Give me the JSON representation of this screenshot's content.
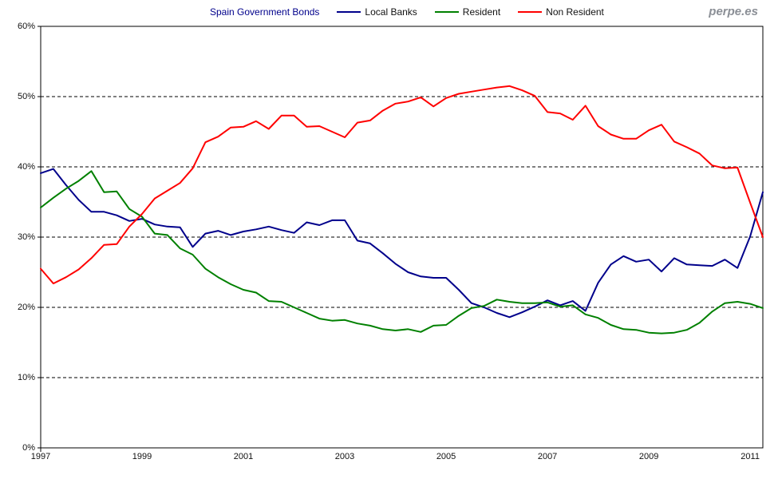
{
  "header": {
    "title": "Spain Government Bonds",
    "watermark": "perpe.es"
  },
  "legend": {
    "position": "top",
    "items": [
      {
        "label": "Local Banks",
        "color": "#00008B"
      },
      {
        "label": "Resident",
        "color": "#008000"
      },
      {
        "label": "Non Resident",
        "color": "#FF0000"
      }
    ]
  },
  "axes": {
    "y_ticks": [
      "60%",
      "50%",
      "40%",
      "30%",
      "20%",
      "10%",
      "0%"
    ],
    "x_ticks": [
      "1997",
      "1999",
      "2001",
      "2003",
      "2005",
      "2007",
      "2009",
      "2011"
    ]
  },
  "chart_data": {
    "type": "line",
    "title": "Spain Government Bonds",
    "x_unit": "year (quarterly samples)",
    "xlim": [
      1997,
      2011.25
    ],
    "ylim": [
      0,
      60
    ],
    "y_tick_step": 10,
    "y_tick_format": "percent",
    "grid": "horizontal-dashed",
    "legend_position": "top",
    "x": [
      1997,
      1997.25,
      1997.5,
      1997.75,
      1998,
      1998.25,
      1998.5,
      1998.75,
      1999,
      1999.25,
      1999.5,
      1999.75,
      2000,
      2000.25,
      2000.5,
      2000.75,
      2001,
      2001.25,
      2001.5,
      2001.75,
      2002,
      2002.25,
      2002.5,
      2002.75,
      2003,
      2003.25,
      2003.5,
      2003.75,
      2004,
      2004.25,
      2004.5,
      2004.75,
      2005,
      2005.25,
      2005.5,
      2005.75,
      2006,
      2006.25,
      2006.5,
      2006.75,
      2007,
      2007.25,
      2007.5,
      2007.75,
      2008,
      2008.25,
      2008.5,
      2008.75,
      2009,
      2009.25,
      2009.5,
      2009.75,
      2010,
      2010.25,
      2010.5,
      2010.75,
      2011,
      2011.25
    ],
    "series": [
      {
        "name": "Local Banks",
        "color": "#00008B",
        "values": [
          39.1,
          39.7,
          37.4,
          35.3,
          33.6,
          33.6,
          33.1,
          32.3,
          32.6,
          31.8,
          31.5,
          31.4,
          28.6,
          30.5,
          30.9,
          30.3,
          30.8,
          31.1,
          31.5,
          31.0,
          30.6,
          32.1,
          31.7,
          32.4,
          32.4,
          29.5,
          29.1,
          27.7,
          26.2,
          25.0,
          24.4,
          24.2,
          24.2,
          22.5,
          20.6,
          20.0,
          19.2,
          18.6,
          19.3,
          20.1,
          21.0,
          20.3,
          20.9,
          19.5,
          23.5,
          26.1,
          27.3,
          26.5,
          26.8,
          25.1,
          27.0,
          26.1,
          26.0,
          25.9,
          26.8,
          25.6,
          30.1,
          36.4
        ]
      },
      {
        "name": "Resident",
        "color": "#008000",
        "values": [
          34.2,
          35.6,
          36.9,
          38.0,
          39.4,
          36.4,
          36.5,
          34.0,
          32.9,
          30.5,
          30.3,
          28.4,
          27.5,
          25.5,
          24.3,
          23.3,
          22.5,
          22.1,
          20.9,
          20.8,
          20.0,
          19.2,
          18.4,
          18.1,
          18.2,
          17.7,
          17.4,
          16.9,
          16.7,
          16.9,
          16.5,
          17.4,
          17.5,
          18.8,
          19.9,
          20.2,
          21.1,
          20.8,
          20.6,
          20.6,
          20.7,
          20.1,
          20.3,
          19.0,
          18.5,
          17.5,
          16.9,
          16.8,
          16.4,
          16.3,
          16.4,
          16.8,
          17.8,
          19.4,
          20.6,
          20.8,
          20.5,
          19.9
        ]
      },
      {
        "name": "Non Resident",
        "color": "#FF0000",
        "values": [
          25.5,
          23.4,
          24.3,
          25.4,
          27.0,
          28.9,
          29.0,
          31.5,
          33.3,
          35.5,
          36.6,
          37.7,
          39.8,
          43.5,
          44.3,
          45.6,
          45.7,
          46.5,
          45.4,
          47.3,
          47.3,
          45.7,
          45.8,
          45.0,
          44.2,
          46.3,
          46.6,
          48.0,
          49.0,
          49.3,
          49.9,
          48.6,
          49.8,
          50.4,
          50.7,
          51.0,
          51.3,
          51.5,
          50.9,
          50.1,
          47.8,
          47.6,
          46.7,
          48.7,
          45.8,
          44.6,
          44.0,
          44.0,
          45.2,
          46.0,
          43.6,
          42.8,
          41.9,
          40.2,
          39.8,
          39.9,
          34.9,
          30.0
        ]
      }
    ]
  }
}
